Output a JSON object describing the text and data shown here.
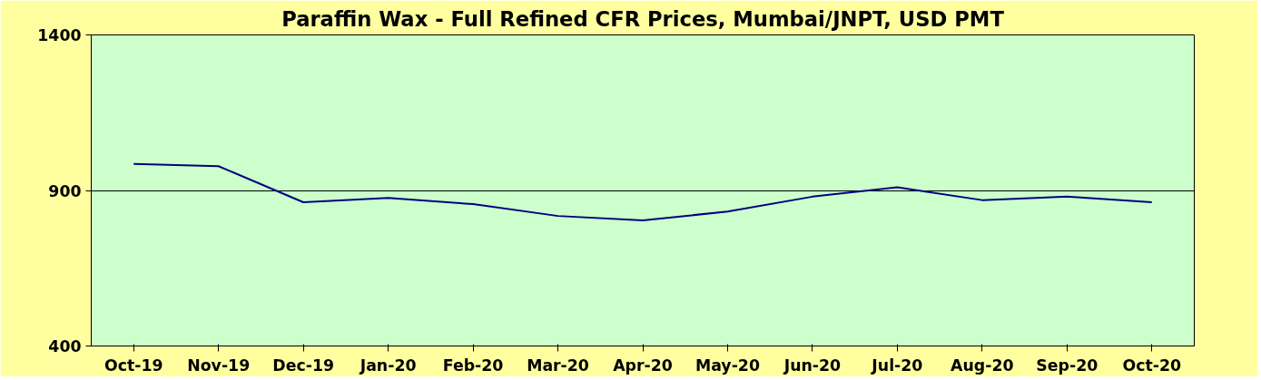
{
  "chart_data": {
    "type": "line",
    "title": "Paraffin Wax - Full Refined CFR Prices, Mumbai/JNPT, USD PMT",
    "categories": [
      "Oct-19",
      "Nov-19",
      "Dec-19",
      "Jan-20",
      "Feb-20",
      "Mar-20",
      "Apr-20",
      "May-20",
      "Jun-20",
      "Jul-20",
      "Aug-20",
      "Sep-20",
      "Oct-20"
    ],
    "series": [
      {
        "color": "#000080",
        "values": [
          985,
          978,
          862,
          876,
          856,
          818,
          804,
          832,
          880,
          910,
          869,
          880,
          862
        ]
      }
    ],
    "ylim": [
      400,
      1400
    ],
    "yticks": [
      400,
      900,
      1400
    ],
    "grid": "y",
    "marker": "none",
    "line_style": "solid"
  }
}
